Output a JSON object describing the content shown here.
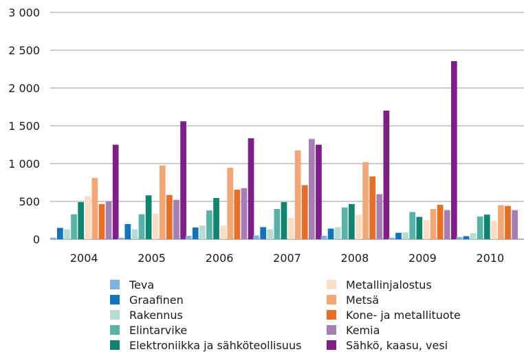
{
  "chart_data": {
    "type": "bar",
    "categories": [
      "2004",
      "2005",
      "2006",
      "2007",
      "2008",
      "2009",
      "2010"
    ],
    "ylim": [
      0,
      3000
    ],
    "yticks": [
      0,
      500,
      1000,
      1500,
      2000,
      2500,
      3000
    ],
    "ytick_labels": [
      "0",
      "500",
      "1 000",
      "1 500",
      "2 000",
      "2 500",
      "3 000"
    ],
    "grid": true,
    "legend_position": "bottom",
    "series": [
      {
        "name": "Teva",
        "color": "#7fb2de",
        "values": [
          20,
          20,
          45,
          50,
          45,
          20,
          30
        ]
      },
      {
        "name": "Graafinen",
        "color": "#1174be",
        "values": [
          150,
          200,
          155,
          160,
          140,
          85,
          40
        ]
      },
      {
        "name": "Rakennus",
        "color": "#b5ddd4",
        "values": [
          130,
          130,
          180,
          130,
          160,
          90,
          80
        ]
      },
      {
        "name": "Elintarvike",
        "color": "#56b3a5",
        "values": [
          330,
          330,
          380,
          400,
          420,
          360,
          300
        ]
      },
      {
        "name": "Elektroniikka ja sähköteollisuus",
        "color": "#0d8571",
        "values": [
          490,
          580,
          545,
          490,
          465,
          295,
          325
        ]
      },
      {
        "name": "Metallinjalostus",
        "color": "#fbdcc5",
        "values": [
          570,
          340,
          180,
          280,
          320,
          255,
          240
        ]
      },
      {
        "name": "Metsä",
        "color": "#f4a774",
        "values": [
          810,
          975,
          945,
          1175,
          1020,
          400,
          450
        ]
      },
      {
        "name": "Kone- ja metallituote",
        "color": "#e86e23",
        "values": [
          465,
          585,
          655,
          715,
          830,
          455,
          440
        ]
      },
      {
        "name": "Kemia",
        "color": "#a77db6",
        "values": [
          500,
          520,
          675,
          1325,
          595,
          385,
          385
        ]
      },
      {
        "name": "Sähkö, kaasu, vesi",
        "color": "#7f1e86",
        "values": [
          1250,
          1560,
          1335,
          1250,
          1700,
          2355,
          0
        ]
      }
    ],
    "legend_rows": 5
  }
}
